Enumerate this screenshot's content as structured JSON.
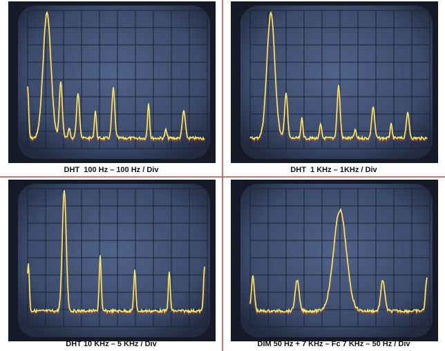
{
  "panels": [
    {
      "caption": "DHT  100 Hz – 100 Hz / Div"
    },
    {
      "caption": "DHT  1 KHz – 1KHz / Div"
    },
    {
      "caption": "DHT 10 KHz – 5 KHz / Div"
    },
    {
      "caption": "DIM 50 Hz + 7 KHz – Fc 7 KHz – 50 Hz / Div"
    }
  ]
}
